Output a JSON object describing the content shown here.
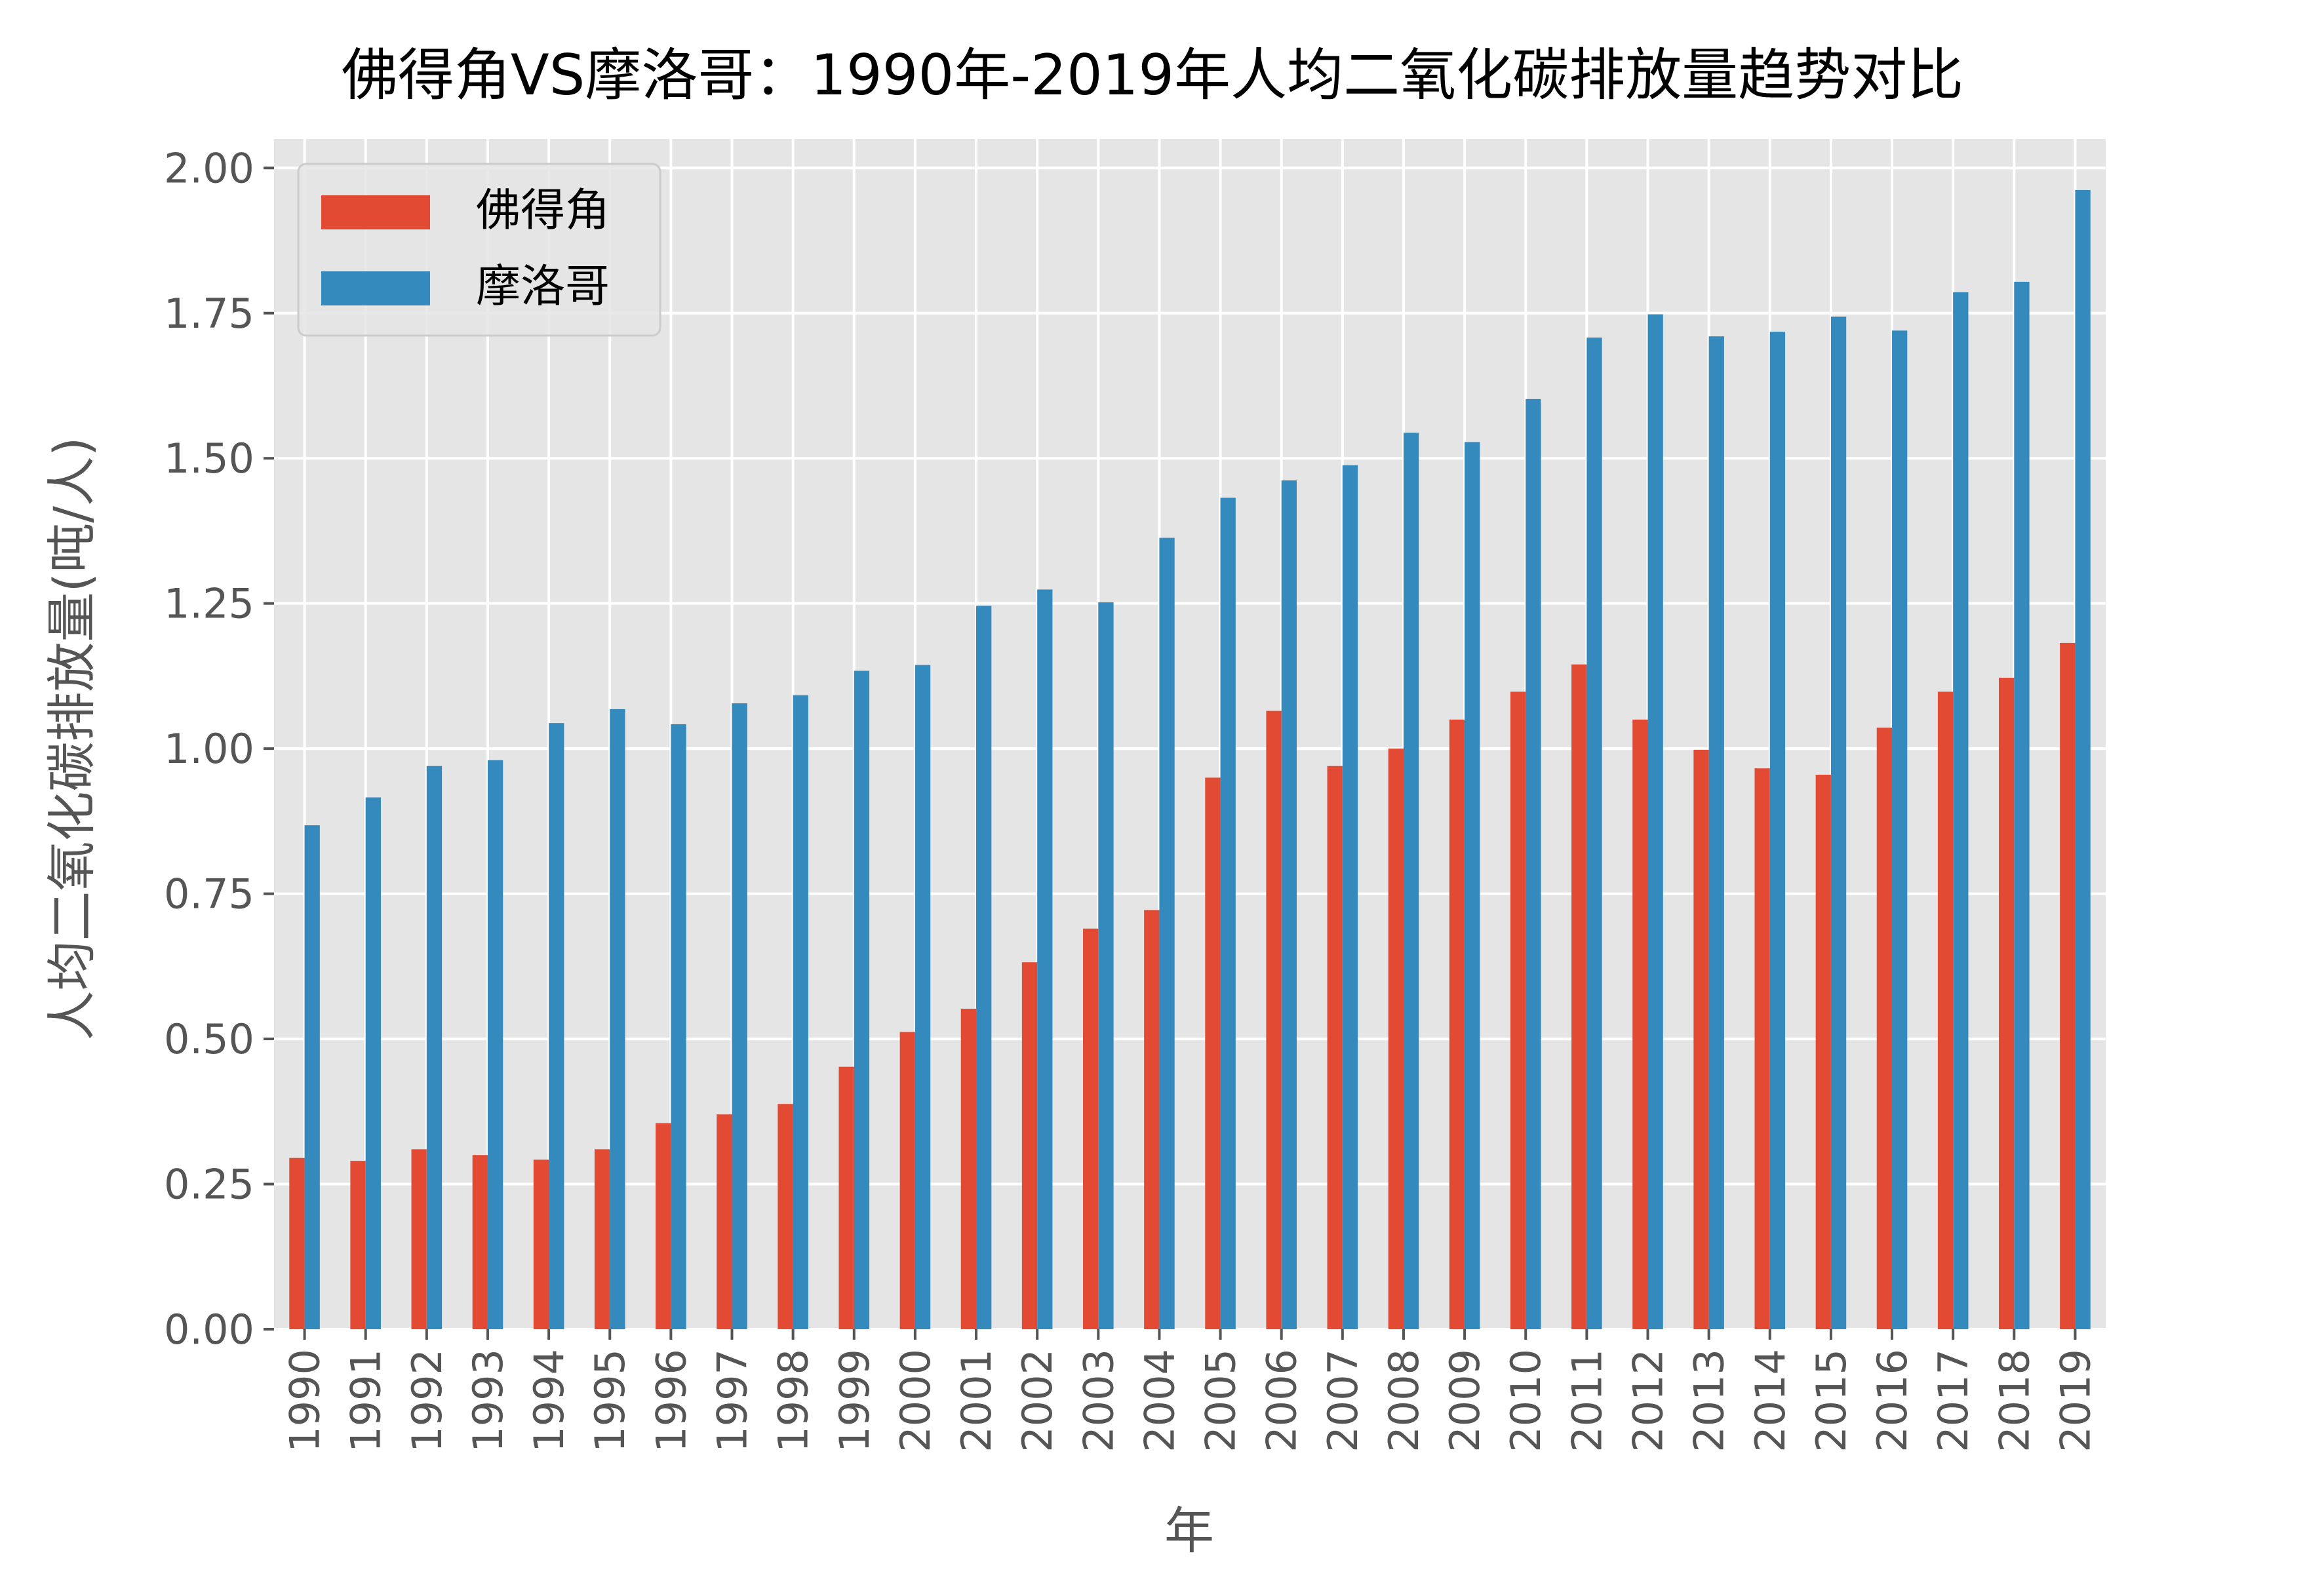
{
  "chart_data": {
    "type": "bar",
    "title": "佛得角VS摩洛哥：1990年-2019年人均二氧化碳排放量趋势对比",
    "xlabel": "年",
    "ylabel": "人均二氧化碳排放量(吨/人)",
    "ylim": [
      0,
      2.05
    ],
    "yticks": [
      0.0,
      0.25,
      0.5,
      0.75,
      1.0,
      1.25,
      1.5,
      1.75,
      2.0
    ],
    "ytick_labels": [
      "0.00",
      "0.25",
      "0.50",
      "0.75",
      "1.00",
      "1.25",
      "1.50",
      "1.75",
      "2.00"
    ],
    "grid": true,
    "legend_position": "top-left",
    "categories": [
      "1990",
      "1991",
      "1992",
      "1993",
      "1994",
      "1995",
      "1996",
      "1997",
      "1998",
      "1999",
      "2000",
      "2001",
      "2002",
      "2003",
      "2004",
      "2005",
      "2006",
      "2007",
      "2008",
      "2009",
      "2010",
      "2011",
      "2012",
      "2013",
      "2014",
      "2015",
      "2016",
      "2017",
      "2018",
      "2019"
    ],
    "series": [
      {
        "name": "佛得角",
        "color": "#E24A33",
        "values": [
          0.295,
          0.29,
          0.31,
          0.3,
          0.292,
          0.31,
          0.355,
          0.37,
          0.388,
          0.452,
          0.512,
          0.552,
          0.632,
          0.69,
          0.722,
          0.95,
          1.065,
          0.97,
          1.0,
          1.05,
          1.098,
          1.145,
          1.05,
          0.998,
          0.966,
          0.955,
          1.036,
          1.098,
          1.122,
          1.182
        ]
      },
      {
        "name": "摩洛哥",
        "color": "#348ABD",
        "values": [
          0.868,
          0.916,
          0.97,
          0.98,
          1.044,
          1.068,
          1.042,
          1.078,
          1.092,
          1.134,
          1.144,
          1.246,
          1.274,
          1.252,
          1.363,
          1.432,
          1.462,
          1.488,
          1.544,
          1.528,
          1.602,
          1.708,
          1.748,
          1.71,
          1.718,
          1.744,
          1.72,
          1.786,
          1.804,
          1.962
        ]
      }
    ]
  },
  "colors": {
    "plot_background": "#E5E5E5",
    "grid": "#FFFFFF",
    "tick_text": "#555555"
  }
}
